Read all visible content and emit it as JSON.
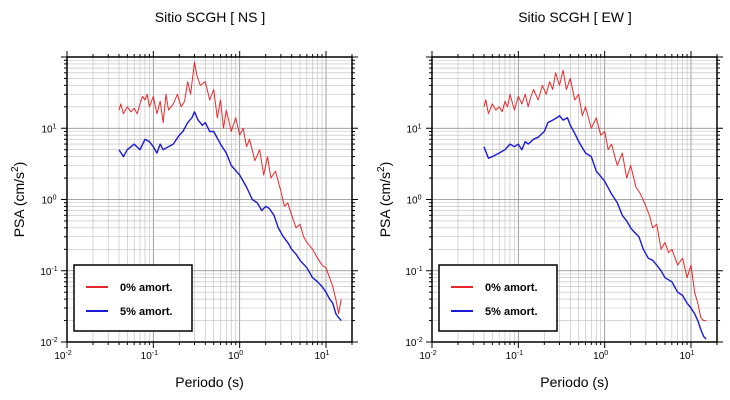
{
  "chart_data": [
    {
      "type": "line",
      "title": "Sitio SCGH [ NS ]",
      "xlabel": "Periodo (s)",
      "ylabel_main": "PSA (cm/s",
      "ylabel_sup": "2",
      "ylabel_close": ")",
      "x_scale": "log",
      "y_scale": "log",
      "xlim": [
        0.01,
        20
      ],
      "ylim": [
        0.01,
        100
      ],
      "grid": true,
      "legend_position": "bottom-left",
      "x_ticks": [
        {
          "base": "10",
          "exp": "-2"
        },
        {
          "base": "10",
          "exp": "-1"
        },
        {
          "base": "10",
          "exp": "0"
        },
        {
          "base": "10",
          "exp": "1"
        }
      ],
      "y_ticks": [
        {
          "base": "10",
          "exp": "-2"
        },
        {
          "base": "10",
          "exp": "-1"
        },
        {
          "base": "10",
          "exp": "0"
        },
        {
          "base": "10",
          "exp": "1"
        }
      ],
      "series": [
        {
          "name": "0% amort.",
          "color": "#e8292b",
          "x": [
            0.04,
            0.042,
            0.045,
            0.05,
            0.055,
            0.06,
            0.065,
            0.07,
            0.075,
            0.08,
            0.085,
            0.09,
            0.1,
            0.11,
            0.12,
            0.13,
            0.14,
            0.15,
            0.17,
            0.19,
            0.21,
            0.23,
            0.25,
            0.27,
            0.3,
            0.32,
            0.35,
            0.4,
            0.45,
            0.5,
            0.55,
            0.6,
            0.65,
            0.7,
            0.8,
            0.9,
            1.0,
            1.1,
            1.2,
            1.3,
            1.5,
            1.7,
            1.9,
            2.1,
            2.3,
            2.6,
            3.0,
            3.3,
            3.6,
            4.0,
            4.5,
            5.0,
            5.5,
            6.0,
            7.0,
            8.0,
            9.0,
            10.0,
            11.0,
            12.0,
            13.0,
            14.0,
            15.0
          ],
          "y": [
            18,
            22,
            16,
            20,
            17,
            19,
            16,
            22,
            28,
            25,
            30,
            20,
            28,
            16,
            24,
            12,
            30,
            18,
            22,
            30,
            20,
            24,
            45,
            30,
            85,
            55,
            40,
            45,
            25,
            35,
            14,
            25,
            10,
            18,
            9,
            14,
            8,
            10,
            5.5,
            7,
            3.5,
            5,
            2.2,
            4,
            2,
            2.5,
            1.3,
            0.8,
            0.9,
            0.6,
            0.4,
            0.45,
            0.3,
            0.25,
            0.2,
            0.15,
            0.12,
            0.11,
            0.08,
            0.06,
            0.04,
            0.025,
            0.04
          ]
        },
        {
          "name": "5% amort.",
          "color": "#1919d6",
          "x": [
            0.04,
            0.045,
            0.05,
            0.06,
            0.07,
            0.08,
            0.09,
            0.1,
            0.11,
            0.12,
            0.13,
            0.15,
            0.17,
            0.2,
            0.22,
            0.25,
            0.28,
            0.3,
            0.33,
            0.37,
            0.4,
            0.45,
            0.5,
            0.6,
            0.7,
            0.8,
            1.0,
            1.2,
            1.4,
            1.6,
            1.8,
            2.0,
            2.2,
            2.5,
            2.8,
            3.2,
            3.6,
            4.0,
            4.5,
            5.0,
            6.0,
            7.0,
            8.0,
            9.0,
            10.0,
            11.0,
            12.0,
            13.0,
            14.0,
            15.0
          ],
          "y": [
            5,
            4,
            5,
            6,
            5,
            7,
            6.5,
            5.5,
            4.5,
            6,
            5,
            5.5,
            6,
            8,
            9,
            12,
            14,
            17,
            13,
            11,
            12,
            9,
            9,
            6,
            4.5,
            3,
            2.2,
            1.5,
            1,
            0.9,
            0.7,
            0.8,
            0.75,
            0.6,
            0.4,
            0.3,
            0.25,
            0.2,
            0.17,
            0.14,
            0.11,
            0.08,
            0.07,
            0.06,
            0.05,
            0.04,
            0.035,
            0.025,
            0.022,
            0.02
          ]
        }
      ]
    },
    {
      "type": "line",
      "title": "Sitio SCGH [ EW ]",
      "xlabel": "Periodo (s)",
      "ylabel_main": "PSA (cm/s",
      "ylabel_sup": "2",
      "ylabel_close": ")",
      "x_scale": "log",
      "y_scale": "log",
      "xlim": [
        0.01,
        20
      ],
      "ylim": [
        0.01,
        100
      ],
      "grid": true,
      "legend_position": "bottom-left",
      "x_ticks": [
        {
          "base": "10",
          "exp": "-2"
        },
        {
          "base": "10",
          "exp": "-1"
        },
        {
          "base": "10",
          "exp": "0"
        },
        {
          "base": "10",
          "exp": "1"
        }
      ],
      "y_ticks": [
        {
          "base": "10",
          "exp": "-2"
        },
        {
          "base": "10",
          "exp": "-1"
        },
        {
          "base": "10",
          "exp": "0"
        },
        {
          "base": "10",
          "exp": "1"
        }
      ],
      "series": [
        {
          "name": "0% amort.",
          "color": "#e8292b",
          "x": [
            0.04,
            0.042,
            0.045,
            0.05,
            0.055,
            0.06,
            0.065,
            0.07,
            0.075,
            0.08,
            0.09,
            0.1,
            0.11,
            0.12,
            0.13,
            0.14,
            0.15,
            0.17,
            0.19,
            0.21,
            0.23,
            0.25,
            0.27,
            0.3,
            0.33,
            0.36,
            0.4,
            0.45,
            0.5,
            0.55,
            0.6,
            0.7,
            0.8,
            0.9,
            1.0,
            1.1,
            1.2,
            1.4,
            1.6,
            1.8,
            2.0,
            2.3,
            2.6,
            3.0,
            3.3,
            3.6,
            4.0,
            4.5,
            5.0,
            5.5,
            6.0,
            7.0,
            8.0,
            9.0,
            10.0,
            11.0,
            12.0,
            13.0,
            14.0,
            15.0
          ],
          "y": [
            20,
            25,
            16,
            22,
            18,
            20,
            17,
            24,
            20,
            30,
            18,
            28,
            22,
            30,
            20,
            28,
            35,
            25,
            40,
            30,
            45,
            35,
            60,
            40,
            65,
            35,
            50,
            25,
            30,
            15,
            20,
            10,
            14,
            8,
            9,
            5,
            6,
            3,
            4.5,
            2,
            3,
            1.5,
            1.2,
            0.8,
            0.6,
            0.4,
            0.45,
            0.2,
            0.25,
            0.18,
            0.2,
            0.12,
            0.15,
            0.08,
            0.12,
            0.05,
            0.035,
            0.022,
            0.02,
            0.02
          ]
        },
        {
          "name": "5% amort.",
          "color": "#1919d6",
          "x": [
            0.04,
            0.045,
            0.05,
            0.06,
            0.07,
            0.08,
            0.09,
            0.1,
            0.11,
            0.12,
            0.13,
            0.15,
            0.17,
            0.2,
            0.22,
            0.25,
            0.28,
            0.3,
            0.33,
            0.37,
            0.4,
            0.45,
            0.5,
            0.6,
            0.7,
            0.8,
            1.0,
            1.2,
            1.4,
            1.6,
            1.8,
            2.0,
            2.2,
            2.5,
            2.8,
            3.2,
            3.6,
            4.0,
            4.5,
            5.0,
            6.0,
            7.0,
            8.0,
            9.0,
            10.0,
            11.0,
            12.0,
            13.0,
            14.0,
            15.0
          ],
          "y": [
            5.5,
            3.8,
            4,
            4.5,
            5,
            6,
            5.5,
            6,
            5,
            6.5,
            6,
            7,
            7.5,
            9,
            12,
            13,
            14,
            15,
            13,
            14,
            11,
            8.5,
            6.5,
            4.5,
            4,
            2.5,
            1.8,
            1.2,
            0.9,
            0.6,
            0.5,
            0.4,
            0.35,
            0.3,
            0.2,
            0.15,
            0.14,
            0.12,
            0.1,
            0.08,
            0.07,
            0.05,
            0.045,
            0.035,
            0.03,
            0.025,
            0.02,
            0.015,
            0.012,
            0.011
          ]
        }
      ]
    }
  ]
}
